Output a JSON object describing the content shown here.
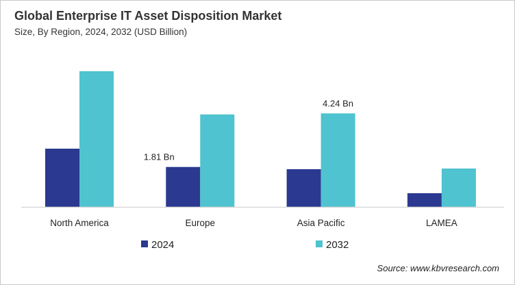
{
  "chart_data": {
    "type": "bar",
    "title": "Global Enterprise IT Asset Disposition Market",
    "subtitle": "Size, By Region, 2024, 2032 (USD Billion)",
    "categories": [
      "North America",
      "Europe",
      "Asia Pacific",
      "LAMEA"
    ],
    "series": [
      {
        "name": "2024",
        "color": "#2b3990",
        "values": [
          2.64,
          1.81,
          1.71,
          0.62
        ]
      },
      {
        "name": "2032",
        "color": "#4fc3cf",
        "values": [
          6.15,
          4.19,
          4.24,
          1.74
        ]
      }
    ],
    "data_labels": [
      {
        "series": 0,
        "category": 1,
        "text": "1.81 Bn"
      },
      {
        "series": 1,
        "category": 2,
        "text": "4.24 Bn"
      }
    ],
    "ylim": [
      0,
      6.5
    ],
    "grid": false,
    "y_axis_shown": false,
    "legend_position": "bottom",
    "source": "Source: www.kbvresearch.com"
  }
}
